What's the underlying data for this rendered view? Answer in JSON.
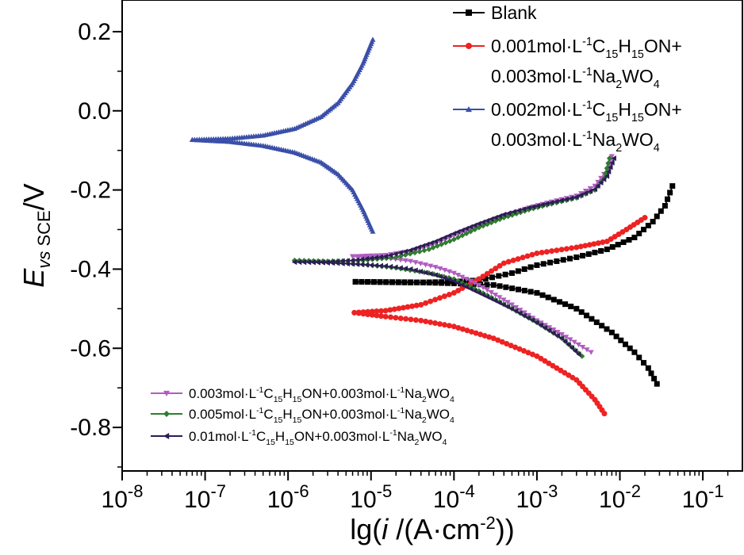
{
  "chart_data": {
    "type": "line",
    "title": "",
    "xlabel": "lg(i /(A·cm⁻²))",
    "ylabel": "E vs SCE/V",
    "xscale": "log",
    "xlim": [
      1e-08,
      0.3
    ],
    "ylim": [
      -0.91,
      0.28
    ],
    "x_ticks": [
      {
        "exp": "-8"
      },
      {
        "exp": "-7"
      },
      {
        "exp": "-6"
      },
      {
        "exp": "-5"
      },
      {
        "exp": "-4"
      },
      {
        "exp": "-3"
      },
      {
        "exp": "-2"
      },
      {
        "exp": "-1"
      }
    ],
    "y_ticks": [
      "0.2",
      "0.0",
      "-0.2",
      "-0.4",
      "-0.6",
      "-0.8"
    ],
    "y_tick_values": [
      0.2,
      0.0,
      -0.2,
      -0.4,
      -0.6,
      -0.8
    ],
    "legend_upper": {
      "position": "top-right",
      "entries": [
        {
          "series": 0,
          "lines": [
            {
              "parts": [
                {
                  "t": "Blank"
                }
              ]
            }
          ]
        },
        {
          "series": 1,
          "lines": [
            {
              "parts": [
                {
                  "t": "0.001mol·L"
                },
                {
                  "t": "-1",
                  "s": "sup"
                },
                {
                  "t": "C"
                },
                {
                  "t": "15",
                  "s": "sub"
                },
                {
                  "t": "H"
                },
                {
                  "t": "15",
                  "s": "sub"
                },
                {
                  "t": "ON+"
                }
              ]
            },
            {
              "parts": [
                {
                  "t": "0.003mol·L"
                },
                {
                  "t": "-1",
                  "s": "sup"
                },
                {
                  "t": "Na"
                },
                {
                  "t": "2",
                  "s": "sub"
                },
                {
                  "t": "WO"
                },
                {
                  "t": "4",
                  "s": "sub"
                }
              ]
            }
          ]
        },
        {
          "series": 2,
          "lines": [
            {
              "parts": [
                {
                  "t": "0.002mol·L"
                },
                {
                  "t": "-1",
                  "s": "sup"
                },
                {
                  "t": "C"
                },
                {
                  "t": "15",
                  "s": "sub"
                },
                {
                  "t": "H"
                },
                {
                  "t": "15",
                  "s": "sub"
                },
                {
                  "t": "ON+"
                }
              ]
            },
            {
              "parts": [
                {
                  "t": "0.003mol·L"
                },
                {
                  "t": "-1",
                  "s": "sup"
                },
                {
                  "t": "Na"
                },
                {
                  "t": "2",
                  "s": "sub"
                },
                {
                  "t": "WO"
                },
                {
                  "t": "4",
                  "s": "sub"
                }
              ]
            }
          ]
        }
      ]
    },
    "legend_lower": {
      "position": "bottom-left",
      "entries": [
        {
          "series": 3,
          "lines": [
            {
              "parts": [
                {
                  "t": "0.003mol·L"
                },
                {
                  "t": "-1",
                  "s": "sup"
                },
                {
                  "t": "C"
                },
                {
                  "t": "15",
                  "s": "sub"
                },
                {
                  "t": "H"
                },
                {
                  "t": "15",
                  "s": "sub"
                },
                {
                  "t": "ON+0.003mol·L"
                },
                {
                  "t": "-1",
                  "s": "sup"
                },
                {
                  "t": "Na"
                },
                {
                  "t": "2",
                  "s": "sub"
                },
                {
                  "t": "WO"
                },
                {
                  "t": "4",
                  "s": "sub"
                }
              ]
            }
          ]
        },
        {
          "series": 4,
          "lines": [
            {
              "parts": [
                {
                  "t": "0.005mol·L"
                },
                {
                  "t": "-1",
                  "s": "sup"
                },
                {
                  "t": "C"
                },
                {
                  "t": "15",
                  "s": "sub"
                },
                {
                  "t": "H"
                },
                {
                  "t": "15",
                  "s": "sub"
                },
                {
                  "t": "ON+0.003mol·L"
                },
                {
                  "t": "-1",
                  "s": "sup"
                },
                {
                  "t": "Na"
                },
                {
                  "t": "2",
                  "s": "sub"
                },
                {
                  "t": "WO"
                },
                {
                  "t": "4",
                  "s": "sub"
                }
              ]
            }
          ]
        },
        {
          "series": 5,
          "lines": [
            {
              "parts": [
                {
                  "t": "0.01mol·L"
                },
                {
                  "t": "-1",
                  "s": "sup"
                },
                {
                  "t": "C"
                },
                {
                  "t": "15",
                  "s": "sub"
                },
                {
                  "t": "H"
                },
                {
                  "t": "15",
                  "s": "sub"
                },
                {
                  "t": "ON+0.003mol·L"
                },
                {
                  "t": "-1",
                  "s": "sup"
                },
                {
                  "t": "Na"
                },
                {
                  "t": "2",
                  "s": "sub"
                },
                {
                  "t": "WO"
                },
                {
                  "t": "4",
                  "s": "sub"
                }
              ]
            }
          ]
        }
      ]
    },
    "series": [
      {
        "name": "Blank",
        "color": "#000000",
        "marker": "square",
        "density": 8,
        "anodic": {
          "Ecorr": -0.432,
          "icorr": 6.5e-06,
          "x": [
            6.5e-06,
            3e-05,
            0.0001,
            0.0002,
            0.0005,
            0.001,
            0.003,
            0.007,
            0.015,
            0.025,
            0.035,
            0.043
          ],
          "y": [
            -0.432,
            -0.434,
            -0.432,
            -0.428,
            -0.41,
            -0.39,
            -0.37,
            -0.35,
            -0.32,
            -0.28,
            -0.24,
            -0.19
          ]
        },
        "cathodic": {
          "x": [
            6.5e-06,
            3e-05,
            0.0001,
            0.0003,
            0.001,
            0.003,
            0.008,
            0.015,
            0.022,
            0.028
          ],
          "y": [
            -0.432,
            -0.433,
            -0.436,
            -0.44,
            -0.46,
            -0.5,
            -0.56,
            -0.61,
            -0.65,
            -0.69
          ]
        }
      },
      {
        "name": "0.001mol·L-1C15H15ON+0.003mol·L-1Na2WO4",
        "color": "#ee2222",
        "marker": "circle",
        "density": 6,
        "anodic": {
          "x": [
            6.3e-06,
            1.5e-05,
            4e-05,
            0.0001,
            0.0002,
            0.0004,
            0.001,
            0.003,
            0.007,
            0.012,
            0.02
          ],
          "y": [
            -0.51,
            -0.505,
            -0.49,
            -0.46,
            -0.425,
            -0.385,
            -0.36,
            -0.345,
            -0.33,
            -0.3,
            -0.27
          ]
        },
        "cathodic": {
          "x": [
            6.3e-06,
            1.5e-05,
            4e-05,
            0.0001,
            0.0003,
            0.001,
            0.003,
            0.005,
            0.0065
          ],
          "y": [
            -0.51,
            -0.52,
            -0.53,
            -0.545,
            -0.575,
            -0.62,
            -0.68,
            -0.73,
            -0.765
          ]
        }
      },
      {
        "name": "0.002mol·L-1C15H15ON+0.003mol·L-1Na2WO4",
        "color": "#3a4fa8",
        "marker": "triangle-up",
        "density": 3,
        "anodic": {
          "x": [
            7e-08,
            2e-07,
            5e-07,
            1.2e-06,
            2.5e-06,
            4e-06,
            6e-06,
            8e-06,
            1.05e-05
          ],
          "y": [
            -0.073,
            -0.07,
            -0.062,
            -0.045,
            -0.015,
            0.02,
            0.07,
            0.12,
            0.18
          ]
        },
        "cathodic": {
          "x": [
            7e-08,
            2e-07,
            5e-07,
            1.2e-06,
            2.5e-06,
            4e-06,
            6e-06,
            8e-06,
            1.05e-05
          ],
          "y": [
            -0.073,
            -0.078,
            -0.088,
            -0.105,
            -0.13,
            -0.16,
            -0.2,
            -0.25,
            -0.305
          ]
        }
      },
      {
        "name": "0.003mol·L-1C15H15ON+0.003mol·L-1Na2WO4",
        "color": "#b05cc0",
        "marker": "triangle-down",
        "density": 6,
        "anodic": {
          "x": [
            6e-06,
            1.5e-05,
            3e-05,
            6e-05,
            0.0001,
            0.0002,
            0.0004,
            0.0008,
            0.0015,
            0.003,
            0.005,
            0.007,
            0.008
          ],
          "y": [
            -0.368,
            -0.365,
            -0.355,
            -0.335,
            -0.315,
            -0.29,
            -0.265,
            -0.245,
            -0.23,
            -0.215,
            -0.19,
            -0.15,
            -0.115
          ]
        },
        "cathodic": {
          "x": [
            6e-06,
            1.5e-05,
            3e-05,
            6e-05,
            0.0001,
            0.0002,
            0.0005,
            0.001,
            0.002,
            0.0045
          ],
          "y": [
            -0.368,
            -0.372,
            -0.38,
            -0.395,
            -0.41,
            -0.44,
            -0.49,
            -0.53,
            -0.565,
            -0.61
          ]
        }
      },
      {
        "name": "0.005mol·L-1C15H15ON+0.003mol·L-1Na2WO4",
        "color": "#2e7d2e",
        "marker": "diamond",
        "density": 6,
        "anodic": {
          "x": [
            1.2e-06,
            3e-06,
            8e-06,
            2e-05,
            5e-05,
            0.0001,
            0.0002,
            0.0004,
            0.0008,
            0.0015,
            0.003,
            0.005,
            0.0065,
            0.0075
          ],
          "y": [
            -0.378,
            -0.38,
            -0.378,
            -0.37,
            -0.35,
            -0.325,
            -0.295,
            -0.27,
            -0.25,
            -0.235,
            -0.22,
            -0.2,
            -0.17,
            -0.12
          ]
        },
        "cathodic": {
          "x": [
            1.2e-06,
            3e-06,
            8e-06,
            2e-05,
            5e-05,
            0.0001,
            0.0002,
            0.0005,
            0.001,
            0.002,
            0.0035
          ],
          "y": [
            -0.378,
            -0.382,
            -0.388,
            -0.397,
            -0.41,
            -0.425,
            -0.455,
            -0.5,
            -0.535,
            -0.575,
            -0.62
          ]
        }
      },
      {
        "name": "0.01mol·L-1C15H15ON+0.003mol·L-1Na2WO4",
        "color": "#2d1d54",
        "marker": "triangle-left",
        "density": 6,
        "anodic": {
          "x": [
            1.2e-06,
            3e-06,
            6e-06,
            1.5e-05,
            3e-05,
            6e-05,
            0.0001,
            0.0002,
            0.0004,
            0.0008,
            0.0015,
            0.003,
            0.005,
            0.007,
            0.0085
          ],
          "y": [
            -0.382,
            -0.382,
            -0.378,
            -0.368,
            -0.352,
            -0.33,
            -0.31,
            -0.285,
            -0.262,
            -0.245,
            -0.232,
            -0.218,
            -0.198,
            -0.165,
            -0.12
          ]
        },
        "cathodic": {
          "x": [
            1.2e-06,
            3e-06,
            6e-06,
            1.5e-05,
            3e-05,
            6e-05,
            0.0001,
            0.0002,
            0.0005,
            0.001,
            0.002,
            0.0032
          ],
          "y": [
            -0.382,
            -0.384,
            -0.387,
            -0.392,
            -0.4,
            -0.415,
            -0.43,
            -0.46,
            -0.5,
            -0.535,
            -0.575,
            -0.615
          ]
        }
      }
    ]
  }
}
